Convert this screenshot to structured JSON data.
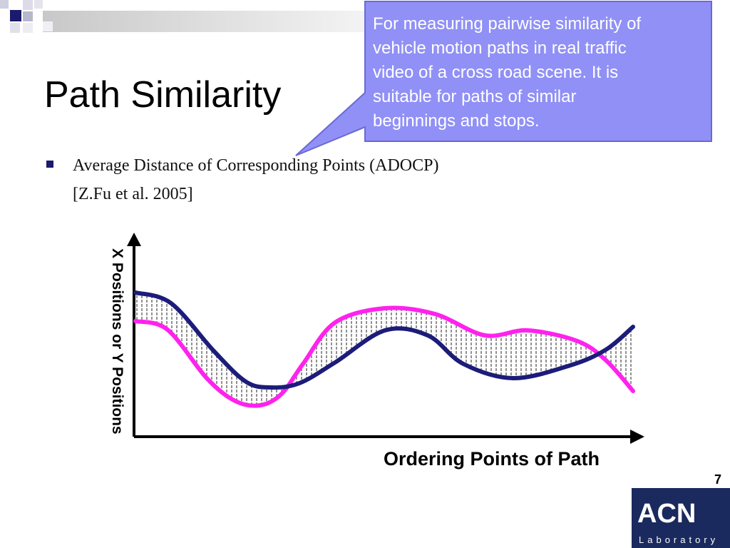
{
  "header": {
    "title": "Path Similarity"
  },
  "callout": {
    "lines": [
      "For measuring pairwise similarity of",
      "vehicle motion paths in real traffic",
      "video of a cross road scene. It is",
      "suitable for paths of similar",
      "beginnings  and stops."
    ]
  },
  "bullet": {
    "lines": [
      "Average Distance of Corresponding Points (ADOCP)",
      "[Z.Fu et al. 2005]"
    ]
  },
  "figure": {
    "y_axis_label": "X Positions or Y Positions",
    "x_axis_label": "Ordering Points of Path"
  },
  "footer": {
    "page_number": "7"
  },
  "logo": {
    "title": "ACN",
    "subtitle": "Laboratory"
  }
}
